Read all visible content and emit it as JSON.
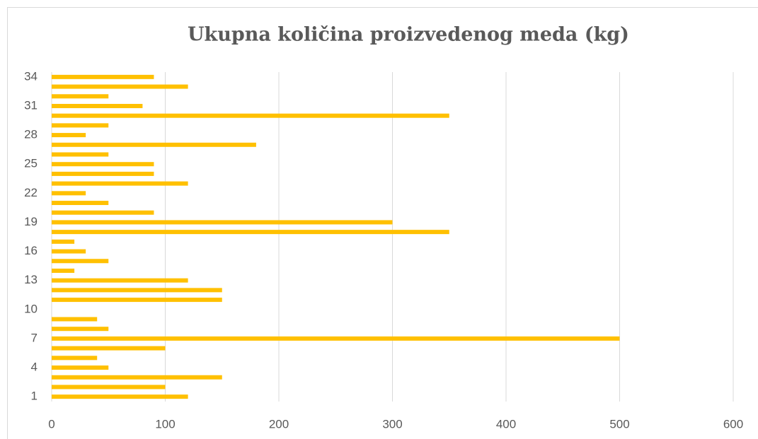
{
  "chart_data": {
    "type": "bar",
    "orientation": "horizontal",
    "title": "Ukupna količina proizvedenog meda (kg)",
    "categories": [
      "1",
      null,
      null,
      "4",
      null,
      null,
      "7",
      null,
      null,
      "10",
      null,
      null,
      "13",
      null,
      null,
      "16",
      null,
      null,
      "19",
      null,
      null,
      "22",
      null,
      null,
      "25",
      null,
      null,
      "28",
      null,
      null,
      "31",
      null,
      null,
      "34"
    ],
    "values": [
      120,
      100,
      150,
      50,
      40,
      100,
      500,
      50,
      40,
      0,
      150,
      150,
      120,
      20,
      50,
      30,
      20,
      350,
      300,
      90,
      50,
      30,
      120,
      90,
      90,
      50,
      180,
      30,
      50,
      350,
      80,
      50,
      120,
      90
    ],
    "color": "#ffc000",
    "xlim": [
      0,
      600
    ],
    "xticks": [
      0,
      100,
      200,
      300,
      400,
      500,
      600
    ],
    "grid": true
  }
}
